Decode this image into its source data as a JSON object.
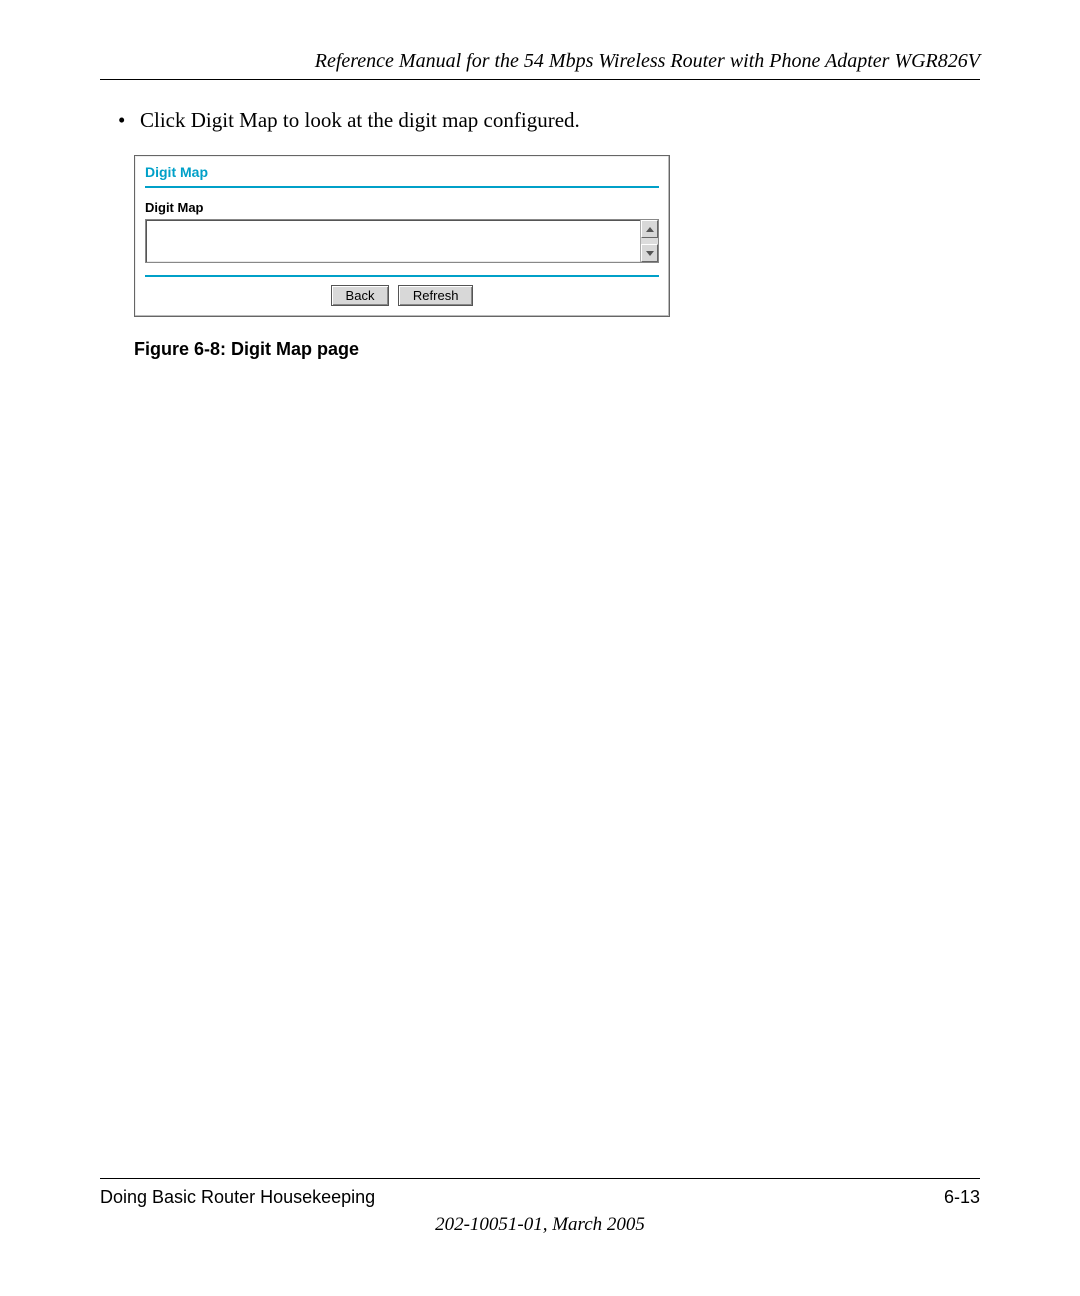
{
  "header": {
    "title": "Reference Manual for the 54 Mbps Wireless Router with Phone Adapter WGR826V"
  },
  "body": {
    "bullet_text": "Click Digit Map to look at the digit map configured."
  },
  "panel": {
    "title": "Digit Map",
    "label": "Digit Map",
    "textarea_value": "",
    "buttons": {
      "back": "Back",
      "refresh": "Refresh"
    },
    "accent_color": "#00a0c8"
  },
  "figure": {
    "caption": "Figure 6-8:  Digit Map page"
  },
  "footer": {
    "section": "Doing Basic Router Housekeeping",
    "page_number": "6-13",
    "doc_id": "202-10051-01, March 2005"
  }
}
